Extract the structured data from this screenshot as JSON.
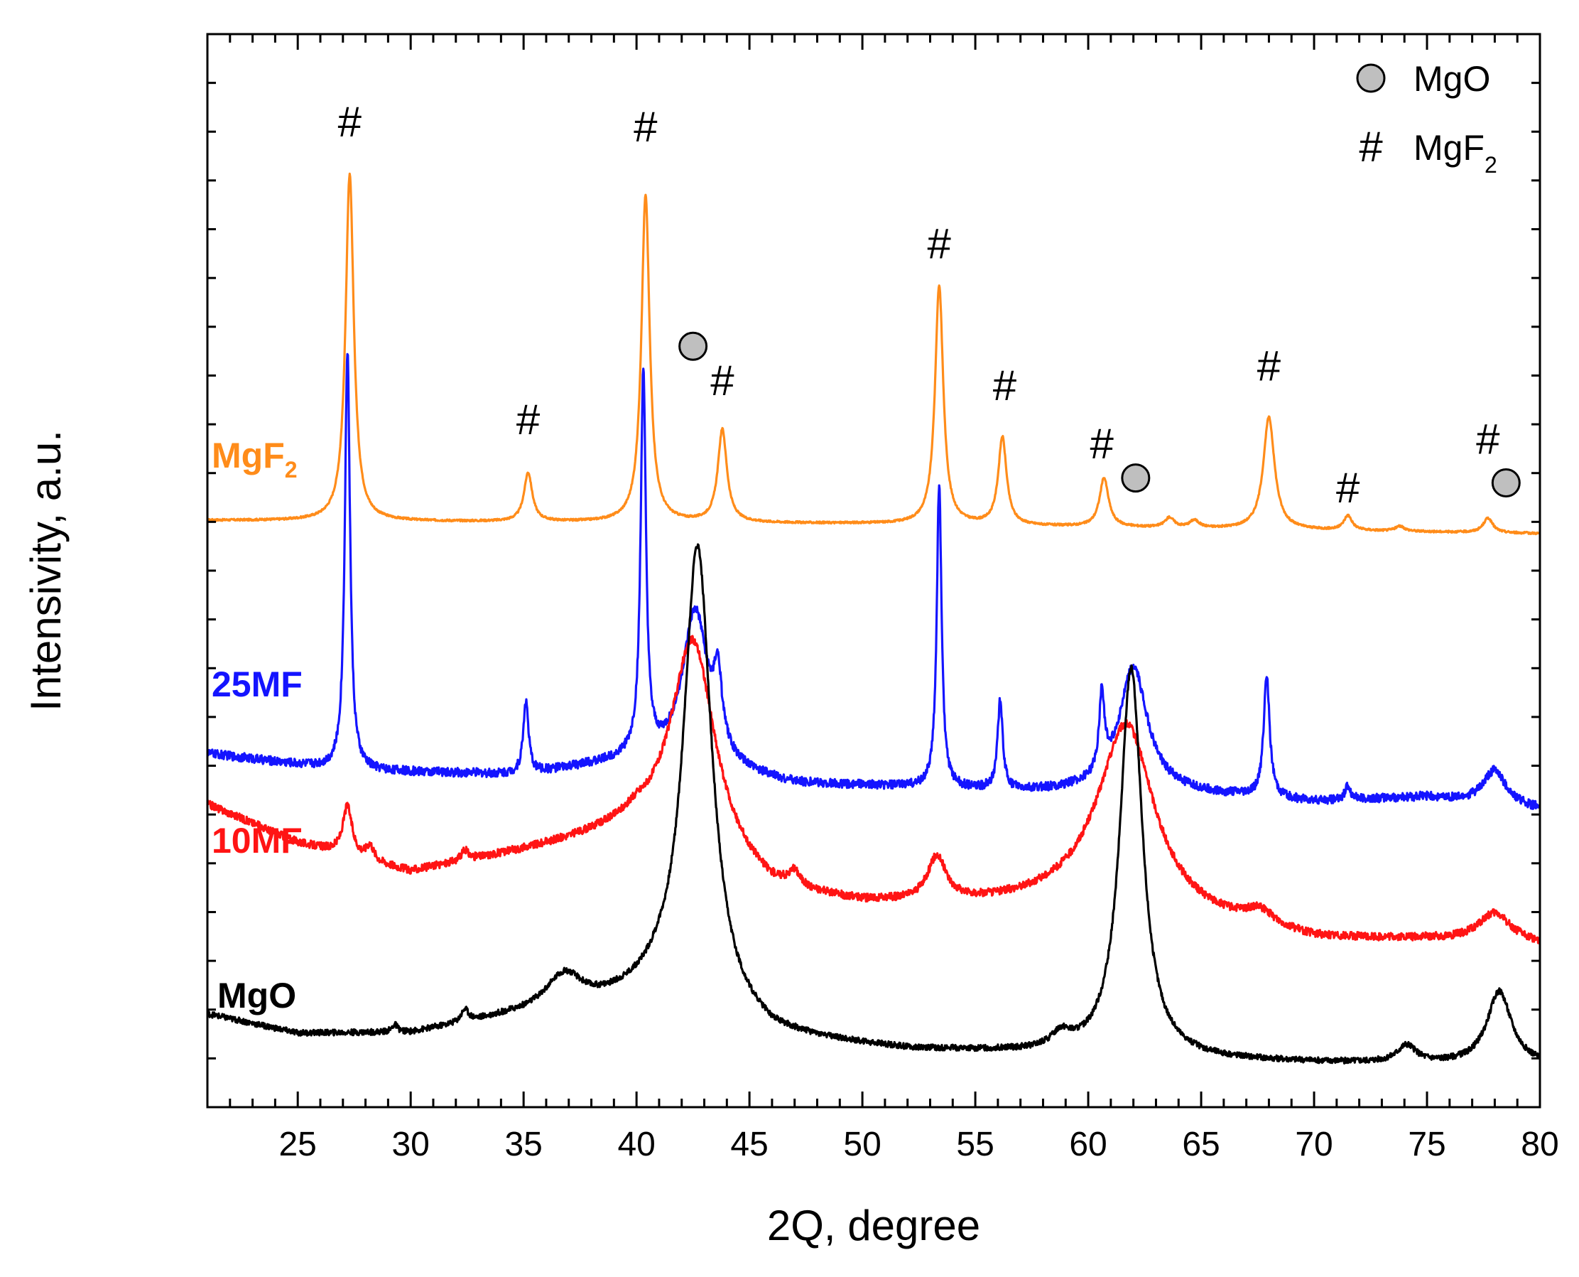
{
  "chart_data": {
    "type": "line",
    "title": "",
    "xlabel": "2Q, degree",
    "ylabel": "Intensivity, a.u.",
    "xlim": [
      21,
      80
    ],
    "ylim": [
      0,
      2.2
    ],
    "x_ticks": [
      25,
      30,
      35,
      40,
      45,
      50,
      55,
      60,
      65,
      70,
      75,
      80
    ],
    "x_tick_labels": [
      "25",
      "30",
      "35",
      "40",
      "45",
      "50",
      "55",
      "60",
      "65",
      "70",
      "75",
      "80"
    ],
    "grid": false,
    "legend_position": "top-right",
    "legend": [
      {
        "symbol": "circle",
        "label": "MgO",
        "label_main": "MgO",
        "label_sub": ""
      },
      {
        "symbol": "hash",
        "label": "MgF2",
        "label_main": "MgF",
        "label_sub": "2"
      }
    ],
    "series": [
      {
        "name": "MgF2",
        "label_main": "MgF",
        "label_sub": "2",
        "color": "#ff8c1a",
        "baseline_points": [
          [
            21,
            1.203
          ],
          [
            50,
            1.196
          ],
          [
            80,
            1.176
          ]
        ],
        "noise": 0.002,
        "peaks": [
          {
            "x": 27.3,
            "h": 0.71,
            "w": 0.22
          },
          {
            "x": 35.2,
            "h": 0.1,
            "w": 0.22
          },
          {
            "x": 40.4,
            "h": 0.67,
            "w": 0.22
          },
          {
            "x": 43.8,
            "h": 0.19,
            "w": 0.24
          },
          {
            "x": 53.4,
            "h": 0.49,
            "w": 0.22
          },
          {
            "x": 56.2,
            "h": 0.18,
            "w": 0.22
          },
          {
            "x": 60.7,
            "h": 0.1,
            "w": 0.24
          },
          {
            "x": 63.6,
            "h": 0.02,
            "w": 0.25
          },
          {
            "x": 64.7,
            "h": 0.015,
            "w": 0.25
          },
          {
            "x": 68.0,
            "h": 0.23,
            "w": 0.3
          },
          {
            "x": 71.5,
            "h": 0.03,
            "w": 0.22
          },
          {
            "x": 73.8,
            "h": 0.01,
            "w": 0.25
          },
          {
            "x": 77.7,
            "h": 0.03,
            "w": 0.25
          }
        ]
      },
      {
        "name": "25MF",
        "label_main": "25MF",
        "label_sub": "",
        "color": "#1414ff",
        "baseline_points": [
          [
            21,
            0.725
          ],
          [
            27,
            0.69
          ],
          [
            35,
            0.68
          ],
          [
            40,
            0.71
          ],
          [
            47,
            0.66
          ],
          [
            52,
            0.655
          ],
          [
            57,
            0.645
          ],
          [
            62,
            0.65
          ],
          [
            70,
            0.625
          ],
          [
            75,
            0.635
          ],
          [
            80,
            0.61
          ]
        ],
        "noise": 0.009,
        "peaks": [
          {
            "x": 27.2,
            "h": 0.86,
            "w": 0.14
          },
          {
            "x": 35.1,
            "h": 0.15,
            "w": 0.14
          },
          {
            "x": 40.3,
            "h": 0.78,
            "w": 0.14
          },
          {
            "x": 42.6,
            "h": 0.32,
            "w": 0.7
          },
          {
            "x": 43.6,
            "h": 0.14,
            "w": 0.22
          },
          {
            "x": 53.4,
            "h": 0.62,
            "w": 0.13
          },
          {
            "x": 56.1,
            "h": 0.18,
            "w": 0.14
          },
          {
            "x": 60.6,
            "h": 0.16,
            "w": 0.14
          },
          {
            "x": 62.0,
            "h": 0.25,
            "w": 0.75
          },
          {
            "x": 67.9,
            "h": 0.25,
            "w": 0.16
          },
          {
            "x": 71.5,
            "h": 0.03,
            "w": 0.14
          },
          {
            "x": 78.0,
            "h": 0.07,
            "w": 0.6
          }
        ]
      },
      {
        "name": "10MF",
        "label_main": "10MF",
        "label_sub": "",
        "color": "#ff1414",
        "baseline_points": [
          [
            21,
            0.62
          ],
          [
            25,
            0.54
          ],
          [
            30,
            0.48
          ],
          [
            35,
            0.52
          ],
          [
            40,
            0.56
          ],
          [
            46,
            0.43
          ],
          [
            50,
            0.41
          ],
          [
            55,
            0.41
          ],
          [
            60,
            0.42
          ],
          [
            64,
            0.38
          ],
          [
            70,
            0.34
          ],
          [
            75,
            0.34
          ],
          [
            80,
            0.33
          ]
        ],
        "noise": 0.008,
        "peaks": [
          {
            "x": 27.2,
            "h": 0.1,
            "w": 0.25
          },
          {
            "x": 28.2,
            "h": 0.03,
            "w": 0.2
          },
          {
            "x": 32.4,
            "h": 0.02,
            "w": 0.2
          },
          {
            "x": 42.5,
            "h": 0.45,
            "w": 1.2
          },
          {
            "x": 47.0,
            "h": 0.03,
            "w": 0.3
          },
          {
            "x": 53.3,
            "h": 0.09,
            "w": 0.5
          },
          {
            "x": 61.7,
            "h": 0.38,
            "w": 1.5
          },
          {
            "x": 67.6,
            "h": 0.03,
            "w": 0.8
          },
          {
            "x": 78.0,
            "h": 0.06,
            "w": 0.9
          }
        ]
      },
      {
        "name": "MgO",
        "label_main": "MgO",
        "label_sub": "",
        "color": "#000000",
        "baseline_points": [
          [
            21,
            0.19
          ],
          [
            25,
            0.15
          ],
          [
            30,
            0.15
          ],
          [
            34,
            0.18
          ],
          [
            38,
            0.2
          ],
          [
            41,
            0.23
          ],
          [
            46,
            0.14
          ],
          [
            52,
            0.115
          ],
          [
            56,
            0.11
          ],
          [
            64,
            0.095
          ],
          [
            70,
            0.09
          ],
          [
            80,
            0.085
          ]
        ],
        "noise": 0.006,
        "peaks": [
          {
            "x": 29.3,
            "h": 0.015,
            "w": 0.15
          },
          {
            "x": 32.4,
            "h": 0.025,
            "w": 0.2
          },
          {
            "x": 36.8,
            "h": 0.07,
            "w": 1.0
          },
          {
            "x": 42.7,
            "h": 0.95,
            "w": 0.75
          },
          {
            "x": 58.8,
            "h": 0.03,
            "w": 0.5
          },
          {
            "x": 61.9,
            "h": 0.8,
            "w": 0.6
          },
          {
            "x": 74.1,
            "h": 0.035,
            "w": 0.5
          },
          {
            "x": 78.2,
            "h": 0.15,
            "w": 0.65
          }
        ]
      }
    ],
    "annotations": [
      {
        "type": "hash",
        "text": "#",
        "x": 27.3,
        "y": 1.99
      },
      {
        "type": "hash",
        "text": "#",
        "x": 40.4,
        "y": 1.98
      },
      {
        "type": "hash",
        "text": "#",
        "x": 53.4,
        "y": 1.74
      },
      {
        "type": "hash",
        "text": "#",
        "x": 35.2,
        "y": 1.38
      },
      {
        "type": "hash",
        "text": "#",
        "x": 43.8,
        "y": 1.46
      },
      {
        "type": "hash",
        "text": "#",
        "x": 56.3,
        "y": 1.45
      },
      {
        "type": "hash",
        "text": "#",
        "x": 60.6,
        "y": 1.33
      },
      {
        "type": "hash",
        "text": "#",
        "x": 68.0,
        "y": 1.49
      },
      {
        "type": "hash",
        "text": "#",
        "x": 71.5,
        "y": 1.24
      },
      {
        "type": "hash",
        "text": "#",
        "x": 77.7,
        "y": 1.34
      },
      {
        "type": "circle",
        "text": "",
        "x": 42.5,
        "y": 1.56
      },
      {
        "type": "circle",
        "text": "",
        "x": 62.1,
        "y": 1.29
      },
      {
        "type": "circle",
        "text": "",
        "x": 78.5,
        "y": 1.28
      }
    ]
  }
}
